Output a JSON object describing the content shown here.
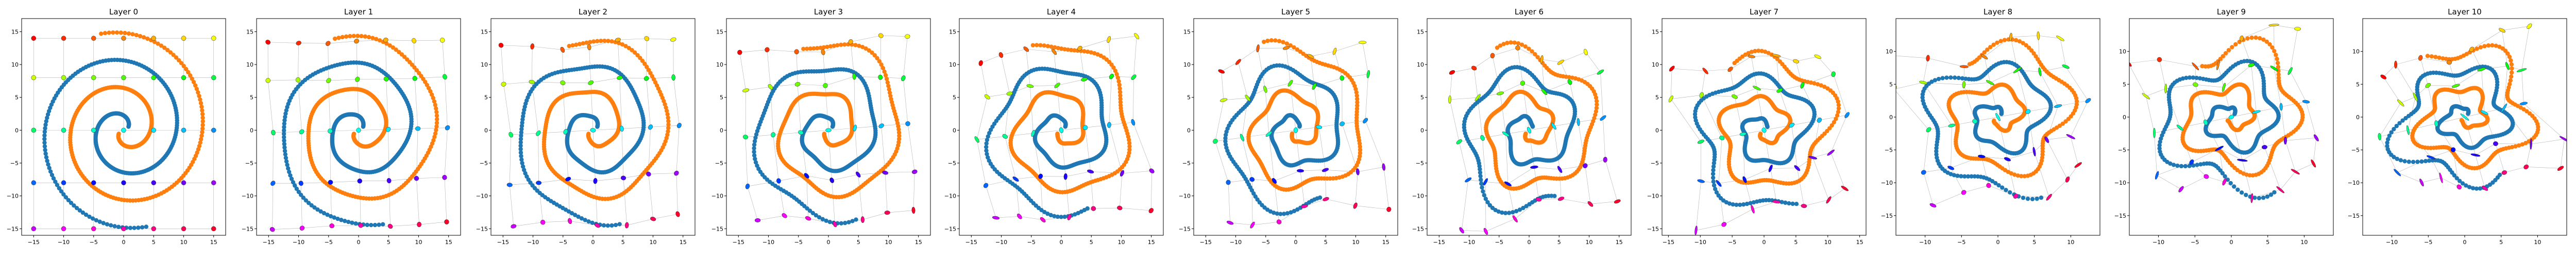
{
  "figure": {
    "panel_titles": [
      "Layer 0",
      "Layer 1",
      "Layer 2",
      "Layer 3",
      "Layer 4",
      "Layer 5",
      "Layer 6",
      "Layer 7",
      "Layer 8",
      "Layer 9",
      "Layer 10"
    ]
  },
  "colors": {
    "series_blue": "#1f77b4",
    "series_orange": "#ff7f0e",
    "grid_lines": "#b0b0b0"
  },
  "chart_data": [
    {
      "type": "scatter",
      "title": "Layer 0",
      "xlim": [
        -17,
        17
      ],
      "ylim": [
        -16,
        17
      ],
      "xticks": [
        -15,
        -10,
        -5,
        0,
        5,
        10,
        15
      ],
      "yticks": [
        -15,
        -10,
        -5,
        0,
        5,
        10,
        15
      ],
      "series": [
        {
          "color": "blue",
          "shape": "spiral-arm"
        },
        {
          "color": "orange",
          "shape": "spiral-arm"
        }
      ],
      "layout": "grid-of-mapped-points"
    },
    {
      "type": "scatter",
      "title": "Layer 1",
      "xlim": [
        -17,
        17
      ],
      "ylim": [
        -16,
        17
      ],
      "xticks": [
        -15,
        -10,
        -5,
        0,
        5,
        10,
        15
      ],
      "yticks": [
        -15,
        -10,
        -5,
        0,
        5,
        10,
        15
      ],
      "series": [
        {
          "color": "blue"
        },
        {
          "color": "orange"
        }
      ]
    },
    {
      "type": "scatter",
      "title": "Layer 2",
      "xlim": [
        -17,
        17
      ],
      "ylim": [
        -16,
        17
      ],
      "xticks": [
        -15,
        -10,
        -5,
        0,
        5,
        10,
        15
      ],
      "yticks": [
        -15,
        -10,
        -5,
        0,
        5,
        10,
        15
      ],
      "series": [
        {
          "color": "blue"
        },
        {
          "color": "orange"
        }
      ]
    },
    {
      "type": "scatter",
      "title": "Layer 3",
      "xlim": [
        -17,
        17
      ],
      "ylim": [
        -16,
        17
      ],
      "xticks": [
        -15,
        -10,
        -5,
        0,
        5,
        10,
        15
      ],
      "yticks": [
        -15,
        -10,
        -5,
        0,
        5,
        10,
        15
      ],
      "series": [
        {
          "color": "blue"
        },
        {
          "color": "orange"
        }
      ]
    },
    {
      "type": "scatter",
      "title": "Layer 4",
      "xlim": [
        -17,
        17
      ],
      "ylim": [
        -16,
        17
      ],
      "xticks": [
        -15,
        -10,
        -5,
        0,
        5,
        10,
        15
      ],
      "yticks": [
        -15,
        -10,
        -5,
        0,
        5,
        10,
        15
      ],
      "series": [
        {
          "color": "blue"
        },
        {
          "color": "orange"
        }
      ]
    },
    {
      "type": "scatter",
      "title": "Layer 5",
      "xlim": [
        -17,
        17
      ],
      "ylim": [
        -16,
        17
      ],
      "xticks": [
        -15,
        -10,
        -5,
        0,
        5,
        10,
        15
      ],
      "yticks": [
        -15,
        -10,
        -5,
        0,
        5,
        10,
        15
      ],
      "series": [
        {
          "color": "blue"
        },
        {
          "color": "orange"
        }
      ]
    },
    {
      "type": "scatter",
      "title": "Layer 6",
      "xlim": [
        -17,
        17
      ],
      "ylim": [
        -16,
        17
      ],
      "xticks": [
        -15,
        -10,
        -5,
        0,
        5,
        10,
        15
      ],
      "yticks": [
        -15,
        -10,
        -5,
        0,
        5,
        10,
        15
      ],
      "series": [
        {
          "color": "blue"
        },
        {
          "color": "orange"
        }
      ]
    },
    {
      "type": "scatter",
      "title": "Layer 7",
      "xlim": [
        -16,
        16
      ],
      "ylim": [
        -16,
        17
      ],
      "xticks": [
        -15,
        -10,
        -5,
        0,
        5,
        10,
        15
      ],
      "yticks": [
        -15,
        -10,
        -5,
        0,
        5,
        10,
        15
      ],
      "series": [
        {
          "color": "blue"
        },
        {
          "color": "orange"
        }
      ]
    },
    {
      "type": "scatter",
      "title": "Layer 8",
      "xlim": [
        -14,
        14
      ],
      "ylim": [
        -18,
        15
      ],
      "xticks": [
        -10,
        -5,
        0,
        5,
        10
      ],
      "yticks": [
        -15,
        -10,
        -5,
        0,
        5,
        10
      ],
      "series": [
        {
          "color": "blue"
        },
        {
          "color": "orange"
        }
      ]
    },
    {
      "type": "scatter",
      "title": "Layer 9",
      "xlim": [
        -14,
        14
      ],
      "ylim": [
        -18,
        15
      ],
      "xticks": [
        -10,
        -5,
        0,
        5,
        10
      ],
      "yticks": [
        -15,
        -10,
        -5,
        0,
        5,
        10
      ],
      "series": [
        {
          "color": "blue"
        },
        {
          "color": "orange"
        }
      ]
    },
    {
      "type": "scatter",
      "title": "Layer 10",
      "xlim": [
        -14,
        14
      ],
      "ylim": [
        -18,
        15
      ],
      "xticks": [
        -10,
        -5,
        0,
        5,
        10
      ],
      "yticks": [
        -15,
        -10,
        -5,
        0,
        5,
        10
      ],
      "series": [
        {
          "color": "blue"
        },
        {
          "color": "orange"
        }
      ]
    }
  ]
}
